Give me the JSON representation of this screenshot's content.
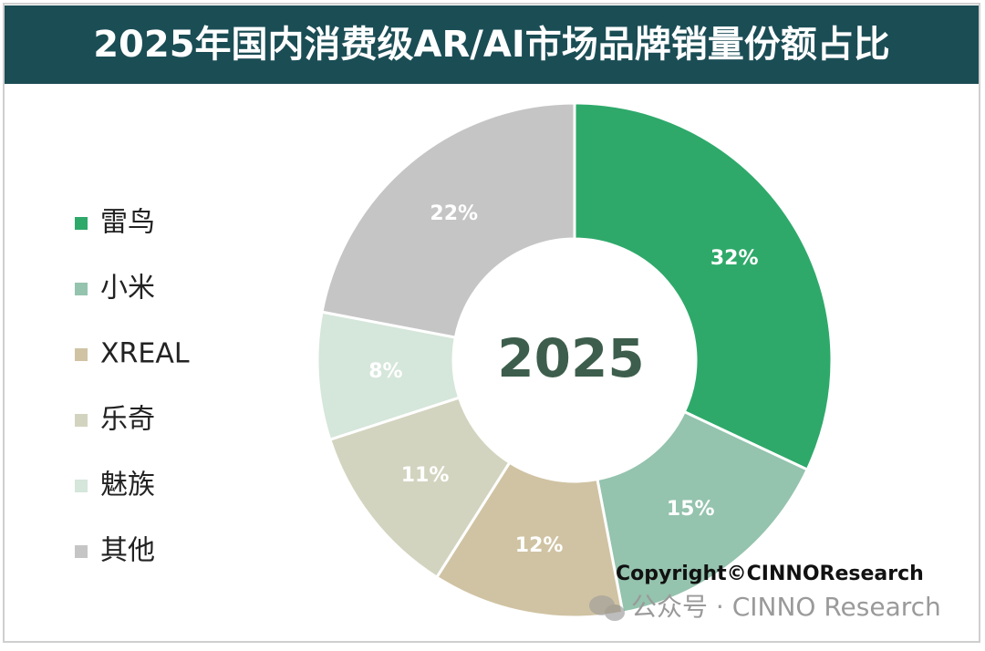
{
  "chart_data": {
    "type": "donut",
    "title": "2025年国内消费级AR/AI市场品牌销量份额占比",
    "center_label": "2025",
    "categories": [
      "雷鸟",
      "小米",
      "XREAL",
      "乐奇",
      "魅族",
      "其他"
    ],
    "values": [
      32,
      15,
      12,
      11,
      8,
      22
    ],
    "value_labels": [
      "32%",
      "15%",
      "12%",
      "11%",
      "8%",
      "22%"
    ],
    "colors": [
      "#2ea96a",
      "#94c3ae",
      "#d0c3a3",
      "#d3d4bf",
      "#d5e6da",
      "#c5c5c5"
    ],
    "legend": "left",
    "annotations": [
      "Copyright©CINNOResearch",
      "公众号 · CINNO Research"
    ]
  }
}
